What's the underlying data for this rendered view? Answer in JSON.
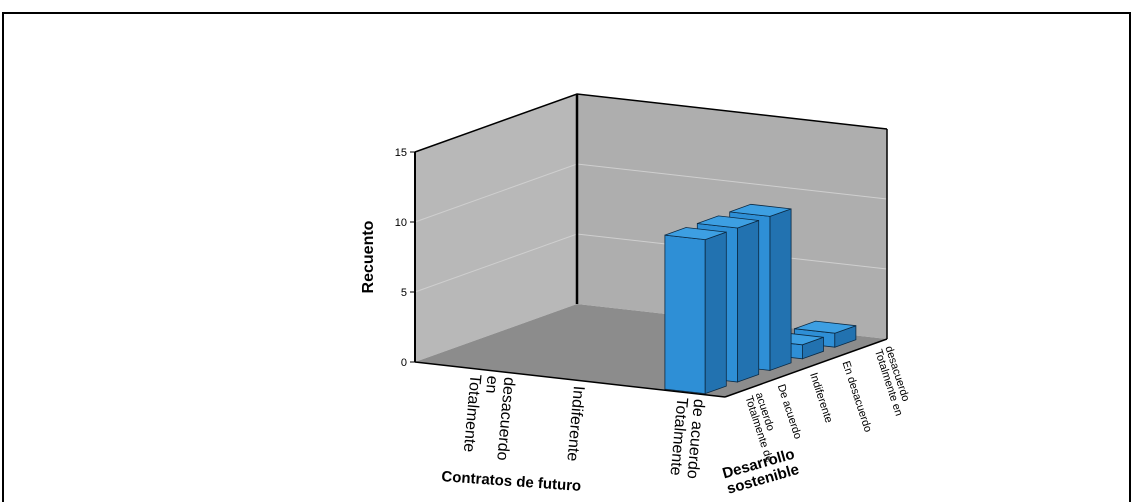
{
  "chart_data": {
    "type": "bar3d",
    "title": "",
    "ylabel": "Recuento",
    "xlabel": "Contratos de futuro",
    "zlabel": "Desarrollo sostenible",
    "ylim": [
      0,
      15
    ],
    "yticks": [
      0,
      5,
      10,
      15
    ],
    "x_categories": [
      "Totalmente en desacuerdo",
      "Indiferente",
      "Totalmente de acuerdo"
    ],
    "z_categories": [
      "Totalmente de acuerdo",
      "De acuerdo",
      "Indiferente",
      "En desacuerdo",
      "Totalmente en desacuerdo"
    ],
    "bars": [
      {
        "x": "Totalmente de acuerdo",
        "z": "Totalmente de acuerdo",
        "value": 11
      },
      {
        "x": "Totalmente de acuerdo",
        "z": "De acuerdo",
        "value": 11
      },
      {
        "x": "Totalmente de acuerdo",
        "z": "Indiferente",
        "value": 11
      },
      {
        "x": "Totalmente de acuerdo",
        "z": "En desacuerdo",
        "value": 1
      },
      {
        "x": "Totalmente de acuerdo",
        "z": "Totalmente en desacuerdo",
        "value": 1
      }
    ],
    "bar_color": "#2e8fd6",
    "grid": true
  }
}
